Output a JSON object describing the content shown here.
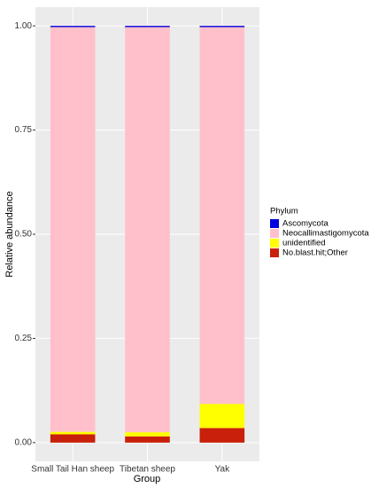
{
  "chart_data": {
    "type": "stacked-bar",
    "x_label": "Group",
    "y_label": "Relative abundance",
    "categories": [
      "Small Tail Han sheep",
      "Tibetan sheep",
      "Yak"
    ],
    "legend_title": "Phylum",
    "series": [
      {
        "name": "Ascomycota",
        "color": "#0000dd",
        "values": [
          0.003,
          0.003,
          0.003
        ]
      },
      {
        "name": "Neocallimastigomycota",
        "color": "#ffc0cb",
        "values": [
          0.971,
          0.972,
          0.904
        ]
      },
      {
        "name": "unidentified",
        "color": "#ffff00",
        "values": [
          0.006,
          0.01,
          0.058
        ]
      },
      {
        "name": "No.blast.hit;Other",
        "color": "#c8200a",
        "values": [
          0.02,
          0.015,
          0.035
        ]
      }
    ],
    "ylim": [
      -0.045,
      1.045
    ],
    "yticks": [
      {
        "value": 0,
        "label": "0.00"
      },
      {
        "value": 0.25,
        "label": "0.25"
      },
      {
        "value": 0.5,
        "label": "0.50"
      },
      {
        "value": 0.75,
        "label": "0.75"
      },
      {
        "value": 1,
        "label": "1.00"
      }
    ],
    "grid": true,
    "legend_position": "right"
  }
}
